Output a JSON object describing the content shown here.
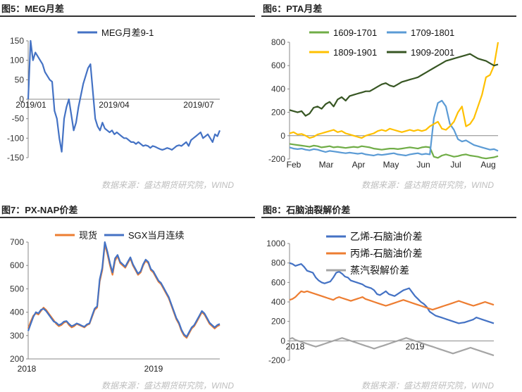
{
  "panels": [
    {
      "title": "图5：MEG月差",
      "source": "数据来源：盛达期货研究院，WIND"
    },
    {
      "title": "图6：PTA月差",
      "source": "数据来源：盛达期货研究院，WIND"
    },
    {
      "title": "图7：PX-NAP价差",
      "source": "数据来源：盛达期货研究院，WIND"
    },
    {
      "title": "图8：石脑油裂解价差",
      "source": "数据来源：盛达期货研究院，WIND"
    }
  ],
  "chart_data": [
    {
      "type": "line",
      "title": "",
      "ylim": [
        -150,
        150
      ],
      "yticks": [
        "150",
        "100",
        "50",
        "0",
        "-50",
        "-100",
        "-150"
      ],
      "xticks": [
        "2019/01",
        "2019/04",
        "2019/07"
      ],
      "legend": "top",
      "colors": [
        "#4472C4"
      ],
      "series": [
        {
          "name": "MEG月差9-1",
          "values": [
            0,
            150,
            100,
            120,
            110,
            100,
            90,
            70,
            60,
            50,
            45,
            -30,
            -50,
            -100,
            -135,
            -50,
            -20,
            0,
            -40,
            -80,
            -60,
            -20,
            10,
            40,
            60,
            80,
            90,
            20,
            -50,
            -70,
            -80,
            -60,
            -75,
            -80,
            -85,
            -80,
            -90,
            -85,
            -90,
            -95,
            -100,
            -100,
            -105,
            -110,
            -110,
            -115,
            -110,
            -115,
            -120,
            -118,
            -120,
            -125,
            -120,
            -122,
            -125,
            -128,
            -130,
            -128,
            -125,
            -127,
            -130,
            -125,
            -120,
            -118,
            -120,
            -115,
            -110,
            -120,
            -105,
            -100,
            -95,
            -90,
            -85,
            -100,
            -95,
            -90,
            -100,
            -110,
            -90,
            -95,
            -80
          ]
        }
      ]
    },
    {
      "type": "line",
      "title": "",
      "ylim": [
        -200,
        800
      ],
      "yticks": [
        "800",
        "600",
        "400",
        "200",
        "0",
        "-200"
      ],
      "xticks": [
        "Feb",
        "Mar",
        "Apr",
        "May",
        "Jun",
        "Jul",
        "Aug"
      ],
      "legend": "top",
      "colors": [
        "#70AD47",
        "#5B9BD5",
        "#FFC000",
        "#375623"
      ],
      "series": [
        {
          "name": "1609-1701",
          "values": [
            -70,
            -75,
            -80,
            -85,
            -90,
            -95,
            -85,
            -90,
            -100,
            -95,
            -90,
            -100,
            -95,
            -100,
            -105,
            -100,
            -95,
            -100,
            -90,
            -95,
            -100,
            -110,
            -115,
            -120,
            -115,
            -110,
            -110,
            -115,
            -110,
            -105,
            -100,
            -105,
            -110,
            -100,
            -95,
            -100,
            -180,
            -190,
            -170,
            -160,
            -170,
            -180,
            -175,
            -165,
            -160,
            -170,
            -175,
            -180,
            -190,
            -195,
            -190,
            -185,
            -175
          ]
        },
        {
          "name": "1709-1801",
          "values": [
            -100,
            -110,
            -115,
            -110,
            -120,
            -125,
            -115,
            -120,
            -130,
            -140,
            -130,
            -135,
            -140,
            -145,
            -150,
            -145,
            -150,
            -155,
            -150,
            -160,
            -165,
            -170,
            -160,
            -165,
            -160,
            -155,
            -150,
            -160,
            -165,
            -170,
            -160,
            -155,
            -150,
            -160,
            -155,
            -160,
            150,
            280,
            300,
            250,
            100,
            50,
            -30,
            -50,
            -40,
            -60,
            -80,
            -90,
            -100,
            -110,
            -120,
            -115,
            -130
          ]
        },
        {
          "name": "1809-1901",
          "values": [
            20,
            30,
            10,
            15,
            0,
            -20,
            -10,
            10,
            20,
            30,
            40,
            50,
            30,
            40,
            20,
            10,
            0,
            -10,
            -20,
            0,
            10,
            20,
            40,
            50,
            40,
            60,
            50,
            40,
            30,
            40,
            50,
            40,
            50,
            40,
            50,
            80,
            100,
            120,
            60,
            50,
            80,
            120,
            200,
            250,
            80,
            100,
            150,
            250,
            350,
            500,
            520,
            600,
            800
          ]
        },
        {
          "name": "1909-2001",
          "values": [
            220,
            210,
            200,
            210,
            170,
            190,
            240,
            250,
            230,
            270,
            290,
            250,
            310,
            330,
            300,
            340,
            350,
            360,
            370,
            380,
            380,
            400,
            420,
            440,
            450,
            430,
            420,
            440,
            460,
            470,
            480,
            490,
            500,
            520,
            540,
            560,
            580,
            600,
            620,
            640,
            650,
            660,
            670,
            680,
            690,
            700,
            680,
            660,
            650,
            640,
            620,
            600,
            610
          ]
        }
      ]
    },
    {
      "type": "line",
      "title": "",
      "ylim": [
        200,
        700
      ],
      "yticks": [
        "700",
        "600",
        "500",
        "400",
        "300",
        "200"
      ],
      "xticks": [
        "2018",
        "2019"
      ],
      "legend": "top",
      "colors": [
        "#ED7D31",
        "#4472C4"
      ],
      "series": [
        {
          "name": "现货",
          "values": [
            330,
            360,
            385,
            395,
            390,
            405,
            420,
            410,
            395,
            380,
            365,
            350,
            340,
            345,
            355,
            360,
            345,
            335,
            340,
            350,
            345,
            340,
            335,
            345,
            350,
            380,
            410,
            420,
            530,
            580,
            690,
            650,
            600,
            560,
            620,
            640,
            610,
            600,
            590,
            610,
            630,
            600,
            580,
            560,
            570,
            600,
            620,
            610,
            580,
            570,
            550,
            530,
            520,
            500,
            480,
            460,
            430,
            400,
            370,
            350,
            320,
            300,
            290,
            310,
            330,
            340,
            360,
            380,
            400,
            390,
            370,
            350,
            340,
            330,
            340,
            345
          ]
        },
        {
          "name": "SGX当月连续",
          "values": [
            320,
            350,
            380,
            400,
            395,
            410,
            415,
            405,
            390,
            375,
            360,
            355,
            345,
            350,
            360,
            362,
            350,
            340,
            345,
            352,
            348,
            342,
            338,
            348,
            352,
            385,
            415,
            425,
            540,
            590,
            700,
            660,
            610,
            570,
            630,
            645,
            615,
            605,
            595,
            615,
            635,
            605,
            585,
            565,
            575,
            605,
            625,
            615,
            585,
            575,
            555,
            535,
            525,
            505,
            485,
            465,
            435,
            405,
            375,
            355,
            325,
            305,
            295,
            315,
            335,
            345,
            365,
            385,
            405,
            395,
            375,
            355,
            345,
            335,
            345,
            350
          ]
        }
      ]
    },
    {
      "type": "line",
      "title": "",
      "ylim": [
        -200,
        1000
      ],
      "yticks": [
        "1000",
        "800",
        "600",
        "400",
        "200",
        "0",
        "-200"
      ],
      "xticks": [
        "2018",
        "2019"
      ],
      "legend": "top",
      "colors": [
        "#4472C4",
        "#ED7D31",
        "#A5A5A5"
      ],
      "series": [
        {
          "name": "乙烯-石脑油价差",
          "values": [
            800,
            790,
            770,
            780,
            790,
            760,
            720,
            710,
            700,
            650,
            620,
            600,
            590,
            600,
            610,
            650,
            700,
            710,
            690,
            660,
            650,
            620,
            610,
            600,
            590,
            580,
            560,
            550,
            540,
            520,
            480,
            470,
            490,
            510,
            480,
            470,
            460,
            480,
            500,
            520,
            530,
            540,
            500,
            460,
            430,
            400,
            380,
            350,
            300,
            280,
            260,
            250,
            240,
            230,
            220,
            210,
            200,
            190,
            180,
            185,
            190,
            200,
            210,
            220,
            240,
            230,
            220,
            210,
            200,
            190,
            180
          ]
        },
        {
          "name": "丙烯-石脑油价差",
          "values": [
            420,
            430,
            450,
            480,
            510,
            500,
            510,
            500,
            490,
            480,
            470,
            460,
            450,
            440,
            430,
            420,
            440,
            450,
            440,
            430,
            420,
            410,
            420,
            430,
            440,
            450,
            430,
            420,
            410,
            400,
            390,
            380,
            370,
            360,
            370,
            380,
            390,
            400,
            410,
            420,
            410,
            400,
            390,
            380,
            370,
            360,
            350,
            340,
            330,
            320,
            330,
            340,
            350,
            360,
            370,
            380,
            390,
            400,
            410,
            400,
            390,
            380,
            370,
            360,
            370,
            380,
            390,
            400,
            390,
            380,
            370
          ]
        },
        {
          "name": "蒸汽裂解价差",
          "values": [
            20,
            30,
            10,
            0,
            -10,
            -20,
            -30,
            -40,
            -50,
            -60,
            -50,
            -40,
            -30,
            -20,
            -10,
            0,
            10,
            20,
            30,
            20,
            10,
            0,
            -10,
            -20,
            -30,
            -40,
            -50,
            -60,
            -70,
            -80,
            -70,
            -60,
            -50,
            -40,
            -30,
            -20,
            -10,
            0,
            10,
            20,
            30,
            20,
            10,
            0,
            -10,
            -20,
            -30,
            -40,
            -50,
            -60,
            -70,
            -80,
            -90,
            -100,
            -110,
            -120,
            -130,
            -120,
            -110,
            -100,
            -90,
            -80,
            -70,
            -80,
            -90,
            -100,
            -110,
            -120,
            -130,
            -140,
            -150
          ]
        }
      ]
    }
  ]
}
